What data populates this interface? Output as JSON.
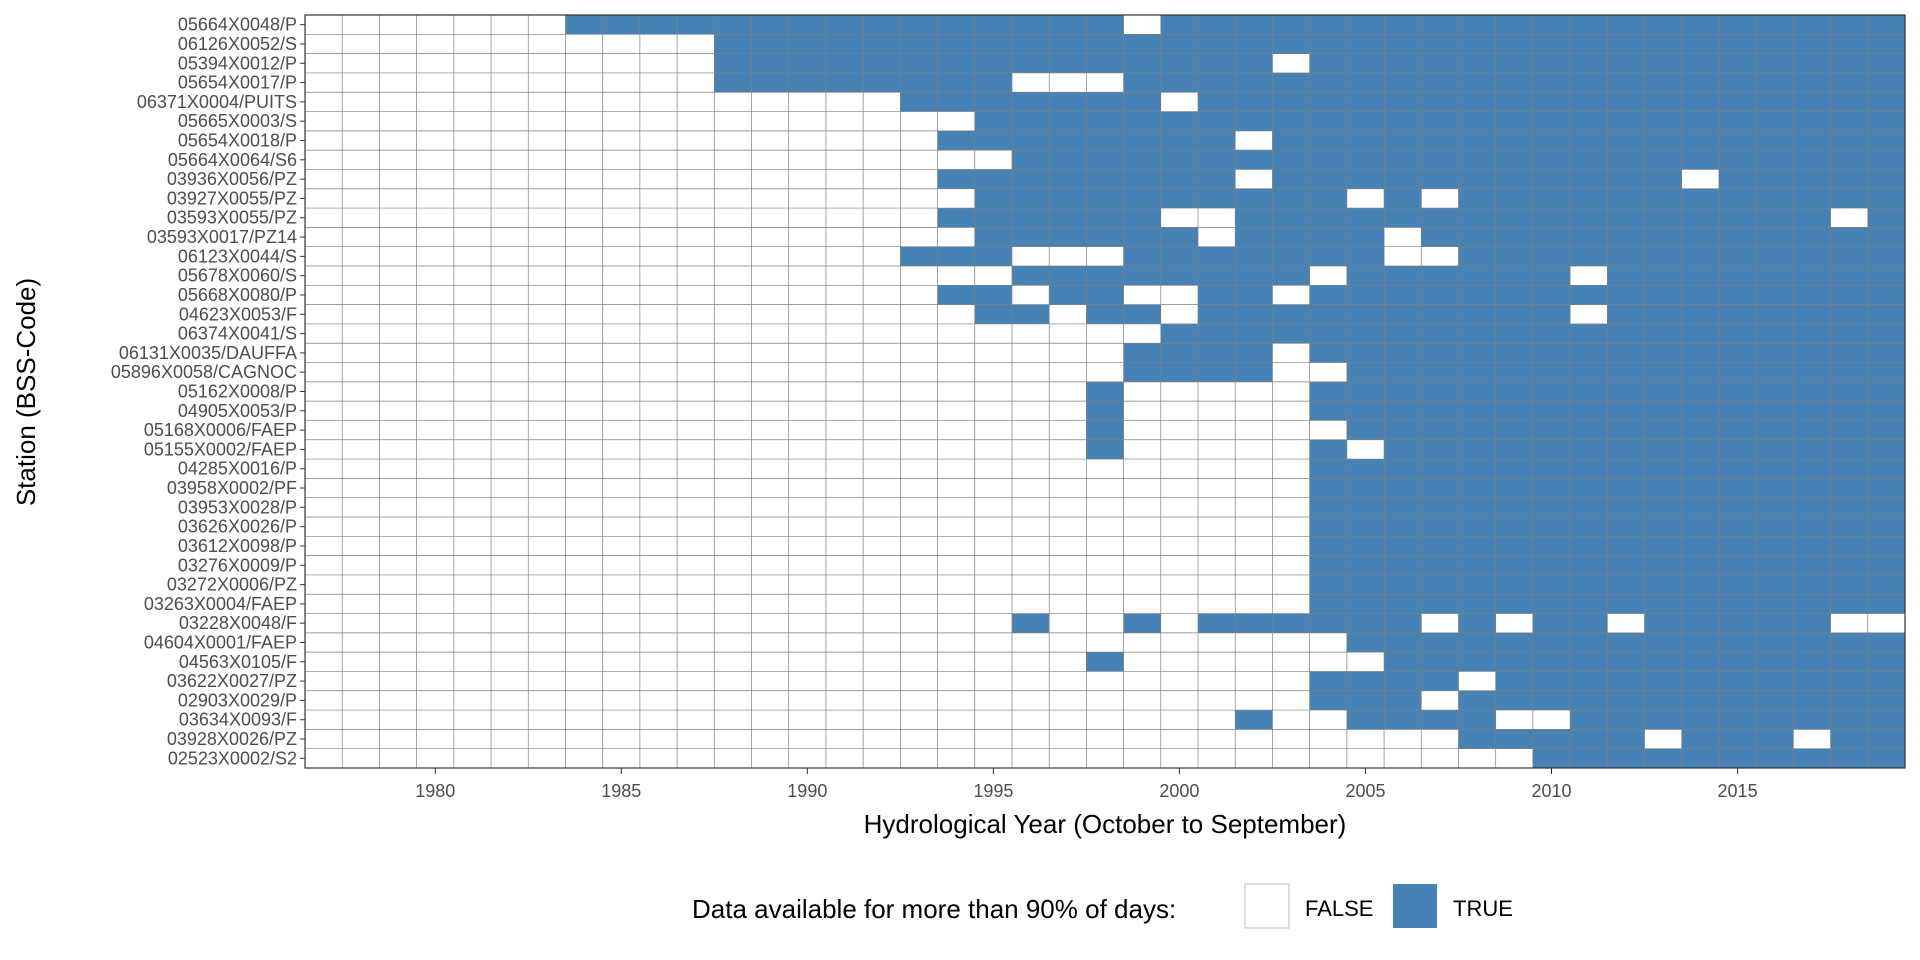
{
  "chart_data": {
    "type": "heatmap",
    "title": "",
    "xlabel": "Hydrological Year (October to September)",
    "ylabel": "Station (BSS-Code)",
    "x_start": 1977,
    "x_end": 2019,
    "xlim": [
      1976.5,
      2019.5
    ],
    "x_ticks": [
      1980,
      1985,
      1990,
      1995,
      2000,
      2005,
      2010,
      2015
    ],
    "colors": {
      "TRUE": "#4682b4",
      "FALSE": "#ffffff",
      "grid": "#7f7f7f",
      "border": "#333333"
    },
    "legend": {
      "title": "Data available for more than 90% of days:",
      "position": "bottom",
      "entries": [
        {
          "label": "FALSE",
          "color": "#ffffff"
        },
        {
          "label": "TRUE",
          "color": "#4682b4"
        }
      ]
    },
    "stations": [
      {
        "name": "05664X0048/P",
        "true_years": [
          "1984-1998",
          "2000-2019"
        ]
      },
      {
        "name": "06126X0052/S",
        "true_years": [
          "1988-2019"
        ]
      },
      {
        "name": "05394X0012/P",
        "true_years": [
          "1988-2002",
          "2004-2019"
        ]
      },
      {
        "name": "05654X0017/P",
        "true_years": [
          "1988-1995",
          "1999-2019"
        ]
      },
      {
        "name": "06371X0004/PUITS",
        "true_years": [
          "1993-1999",
          "2001-2019"
        ]
      },
      {
        "name": "05665X0003/S",
        "true_years": [
          "1995-2019"
        ]
      },
      {
        "name": "05654X0018/P",
        "true_years": [
          "1994-2001",
          "2003-2019"
        ]
      },
      {
        "name": "05664X0064/S6",
        "true_years": [
          "1996-2019"
        ]
      },
      {
        "name": "03936X0056/PZ",
        "true_years": [
          "1994-2001",
          "2003-2013",
          "2015-2019"
        ]
      },
      {
        "name": "03927X0055/PZ",
        "true_years": [
          "1995-2004",
          "2006",
          "2008-2019"
        ]
      },
      {
        "name": "03593X0055/PZ",
        "true_years": [
          "1994-1999",
          "2002-2017",
          "2019"
        ]
      },
      {
        "name": "03593X0017/PZ14",
        "true_years": [
          "1995-2000",
          "2002-2005",
          "2007-2019"
        ]
      },
      {
        "name": "06123X0044/S",
        "true_years": [
          "1993-1995",
          "1999-2005",
          "2008-2019"
        ]
      },
      {
        "name": "05678X0060/S",
        "true_years": [
          "1996-2003",
          "2005-2010",
          "2012-2019"
        ]
      },
      {
        "name": "05668X0080/P",
        "true_years": [
          "1994-1995",
          "1997-1998",
          "2001-2002",
          "2004-2019"
        ]
      },
      {
        "name": "04623X0053/F",
        "true_years": [
          "1995-1996",
          "1998-1999",
          "2001-2010",
          "2012-2019"
        ]
      },
      {
        "name": "06374X0041/S",
        "true_years": [
          "2000-2019"
        ]
      },
      {
        "name": "06131X0035/DAUFFA",
        "true_years": [
          "1999-2002",
          "2004-2019"
        ]
      },
      {
        "name": "05896X0058/CAGNOC",
        "true_years": [
          "1999-2002",
          "2005-2019"
        ]
      },
      {
        "name": "05162X0008/P",
        "true_years": [
          "1998",
          "2004-2019"
        ]
      },
      {
        "name": "04905X0053/P",
        "true_years": [
          "1998",
          "2004-2019"
        ]
      },
      {
        "name": "05168X0006/FAEP",
        "true_years": [
          "1998",
          "2005-2019"
        ]
      },
      {
        "name": "05155X0002/FAEP",
        "true_years": [
          "1998",
          "2004",
          "2006-2019"
        ]
      },
      {
        "name": "04285X0016/P",
        "true_years": [
          "2004-2019"
        ]
      },
      {
        "name": "03958X0002/PF",
        "true_years": [
          "2004-2019"
        ]
      },
      {
        "name": "03953X0028/P",
        "true_years": [
          "2004-2019"
        ]
      },
      {
        "name": "03626X0026/P",
        "true_years": [
          "2004-2019"
        ]
      },
      {
        "name": "03612X0098/P",
        "true_years": [
          "2004-2019"
        ]
      },
      {
        "name": "03276X0009/P",
        "true_years": [
          "2004-2019"
        ]
      },
      {
        "name": "03272X0006/PZ",
        "true_years": [
          "2004-2019"
        ]
      },
      {
        "name": "03263X0004/FAEP",
        "true_years": [
          "2004-2019"
        ]
      },
      {
        "name": "03228X0048/F",
        "true_years": [
          "1996",
          "1999",
          "2001-2006",
          "2008",
          "2010-2011",
          "2013-2017"
        ]
      },
      {
        "name": "04604X0001/FAEP",
        "true_years": [
          "2005-2019"
        ]
      },
      {
        "name": "04563X0105/F",
        "true_years": [
          "1998",
          "2006-2019"
        ]
      },
      {
        "name": "03622X0027/PZ",
        "true_years": [
          "2004-2007",
          "2009-2019"
        ]
      },
      {
        "name": "02903X0029/P",
        "true_years": [
          "2004-2006",
          "2008-2019"
        ]
      },
      {
        "name": "03634X0093/F",
        "true_years": [
          "2002",
          "2005-2008",
          "2011-2019"
        ]
      },
      {
        "name": "03928X0026/PZ",
        "true_years": [
          "2008-2012",
          "2014-2016",
          "2018-2019"
        ]
      },
      {
        "name": "02523X0002/S2",
        "true_years": [
          "2010-2019"
        ]
      }
    ]
  }
}
